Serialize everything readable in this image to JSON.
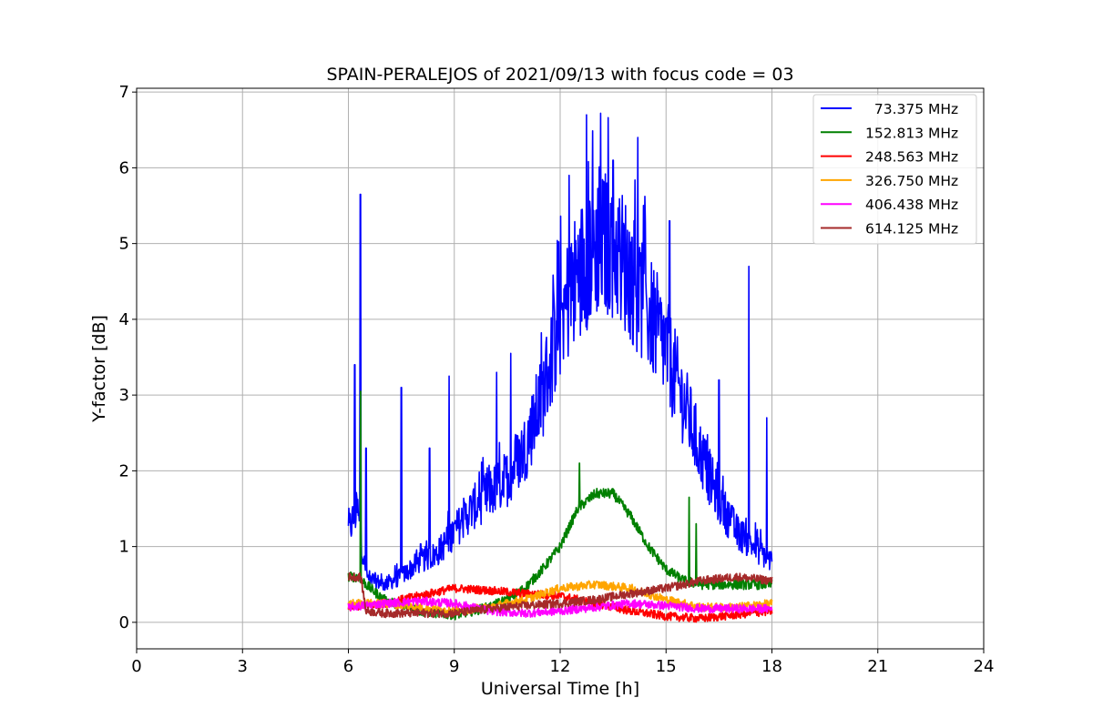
{
  "chart_data": {
    "type": "line",
    "title": "SPAIN-PERALEJOS of 2021/09/13 with focus code = 03",
    "xlabel": "Universal Time [h]",
    "ylabel": "Y-factor [dB]",
    "xlim": [
      0,
      24
    ],
    "ylim": [
      -0.35,
      7.05
    ],
    "xticks": [
      0,
      3,
      6,
      9,
      12,
      15,
      18,
      21,
      24
    ],
    "yticks": [
      0,
      1,
      2,
      3,
      4,
      5,
      6,
      7
    ],
    "grid": true,
    "legend_position": "top-right",
    "series": [
      {
        "name": "73.375 MHz",
        "legend_label": "  73.375 MHz",
        "color": "#0000ff",
        "x": [
          6.0,
          6.25,
          6.5,
          7.0,
          7.5,
          8.0,
          8.5,
          9.0,
          9.5,
          10.0,
          10.5,
          11.0,
          11.5,
          12.0,
          12.5,
          13.0,
          13.5,
          14.0,
          14.5,
          15.0,
          15.5,
          16.0,
          16.5,
          17.0,
          17.5,
          18.0
        ],
        "values": [
          1.2,
          1.5,
          0.6,
          0.5,
          0.6,
          0.8,
          0.9,
          1.2,
          1.5,
          1.7,
          1.9,
          2.3,
          3.0,
          4.0,
          4.6,
          5.0,
          5.0,
          4.6,
          4.1,
          3.6,
          2.9,
          2.2,
          1.6,
          1.2,
          1.0,
          0.8
        ],
        "spikes": [
          [
            6.18,
            3.4
          ],
          [
            6.34,
            5.65
          ],
          [
            6.5,
            2.3
          ],
          [
            7.5,
            3.1
          ],
          [
            8.3,
            2.3
          ],
          [
            8.85,
            3.25
          ],
          [
            10.2,
            3.3
          ],
          [
            10.6,
            3.55
          ],
          [
            11.6,
            3.7
          ],
          [
            12.25,
            5.9
          ],
          [
            12.75,
            6.7
          ],
          [
            13.15,
            6.72
          ],
          [
            13.5,
            6.1
          ],
          [
            14.2,
            6.4
          ],
          [
            15.1,
            5.3
          ],
          [
            16.5,
            3.2
          ],
          [
            17.35,
            4.7
          ],
          [
            17.85,
            2.7
          ]
        ]
      },
      {
        "name": "152.813 MHz",
        "legend_label": "152.813 MHz",
        "color": "#008000",
        "x": [
          6.0,
          6.3,
          6.5,
          7.0,
          8.0,
          9.0,
          10.0,
          10.5,
          11.0,
          11.5,
          12.0,
          12.5,
          13.0,
          13.5,
          14.0,
          14.5,
          15.0,
          15.5,
          16.0,
          16.5,
          17.0,
          17.5,
          18.0
        ],
        "values": [
          0.6,
          0.6,
          0.5,
          0.3,
          0.15,
          0.1,
          0.2,
          0.3,
          0.45,
          0.7,
          1.0,
          1.5,
          1.7,
          1.7,
          1.4,
          1.0,
          0.7,
          0.55,
          0.5,
          0.5,
          0.5,
          0.5,
          0.5
        ],
        "spikes": [
          [
            6.35,
            3.05
          ],
          [
            12.55,
            2.1
          ],
          [
            15.65,
            1.65
          ],
          [
            15.85,
            1.3
          ]
        ]
      },
      {
        "name": "248.563 MHz",
        "legend_label": "248.563 MHz",
        "color": "#ff0000",
        "x": [
          6.0,
          7.0,
          8.0,
          9.0,
          10.0,
          11.0,
          12.0,
          13.0,
          14.0,
          15.0,
          16.0,
          17.0,
          18.0
        ],
        "values": [
          0.2,
          0.25,
          0.35,
          0.45,
          0.42,
          0.38,
          0.35,
          0.25,
          0.15,
          0.08,
          0.05,
          0.1,
          0.15
        ]
      },
      {
        "name": "326.750 MHz",
        "legend_label": "326.750 MHz",
        "color": "#ffa500",
        "x": [
          6.0,
          7.0,
          8.0,
          9.0,
          10.0,
          11.0,
          12.0,
          13.0,
          14.0,
          15.0,
          16.0,
          17.0,
          18.0
        ],
        "values": [
          0.25,
          0.25,
          0.2,
          0.15,
          0.2,
          0.3,
          0.45,
          0.5,
          0.45,
          0.3,
          0.2,
          0.2,
          0.25
        ]
      },
      {
        "name": "406.438 MHz",
        "legend_label": "406.438 MHz",
        "color": "#ff00ff",
        "x": [
          6.0,
          7.0,
          8.0,
          9.0,
          10.0,
          11.0,
          12.0,
          13.0,
          14.0,
          15.0,
          16.0,
          17.0,
          18.0
        ],
        "values": [
          0.2,
          0.25,
          0.28,
          0.25,
          0.15,
          0.12,
          0.15,
          0.2,
          0.25,
          0.22,
          0.18,
          0.18,
          0.18
        ]
      },
      {
        "name": "614.125 MHz",
        "legend_label": "614.125 MHz",
        "color": "#a52a2a",
        "x": [
          6.0,
          6.35,
          6.5,
          7.0,
          8.0,
          9.0,
          10.0,
          11.0,
          12.0,
          13.0,
          14.0,
          15.0,
          16.0,
          17.0,
          18.0
        ],
        "values": [
          0.6,
          0.6,
          0.15,
          0.12,
          0.12,
          0.12,
          0.18,
          0.22,
          0.25,
          0.3,
          0.38,
          0.45,
          0.55,
          0.6,
          0.55
        ]
      }
    ]
  }
}
